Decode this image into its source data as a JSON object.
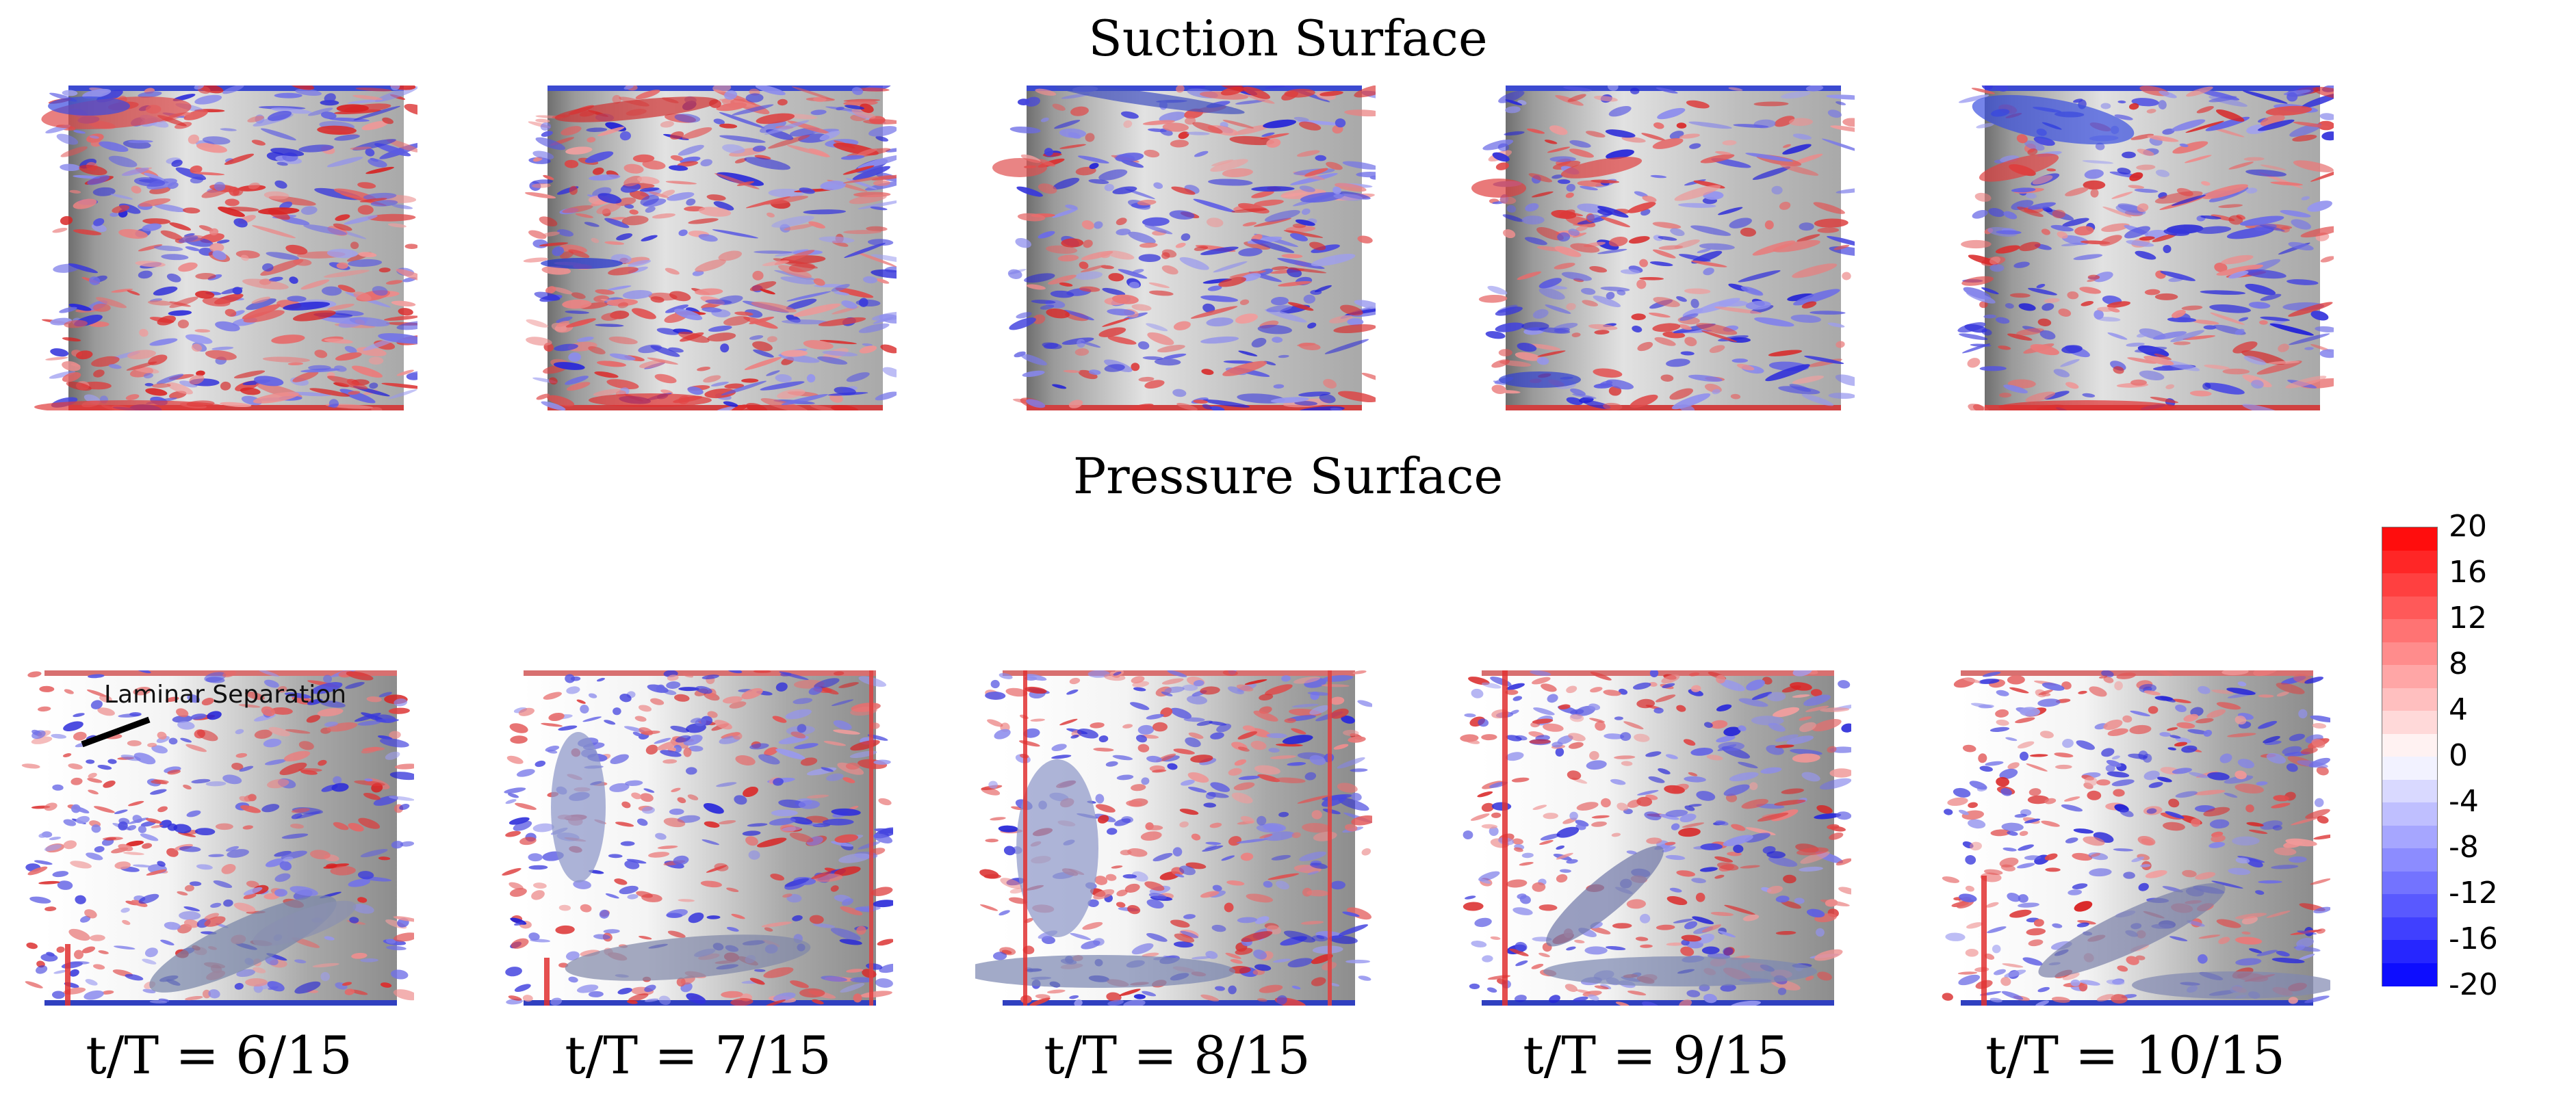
{
  "titles": {
    "suction": "Suction Surface",
    "pressure": "Pressure Surface"
  },
  "time_labels": [
    "t/T = 6/15",
    "t/T = 7/15",
    "t/T = 8/15",
    "t/T = 9/15",
    "t/T = 10/15"
  ],
  "annotation": "Laminar Separation",
  "colorbar": {
    "ticks": [
      "20",
      "16",
      "12",
      "8",
      "4",
      "0",
      "-4",
      "-8",
      "-12",
      "-16",
      "-20"
    ],
    "min": -20,
    "max": 20,
    "colors": {
      "high": "#ff0000",
      "mid": "#ffffff",
      "low": "#0000ff"
    }
  }
}
